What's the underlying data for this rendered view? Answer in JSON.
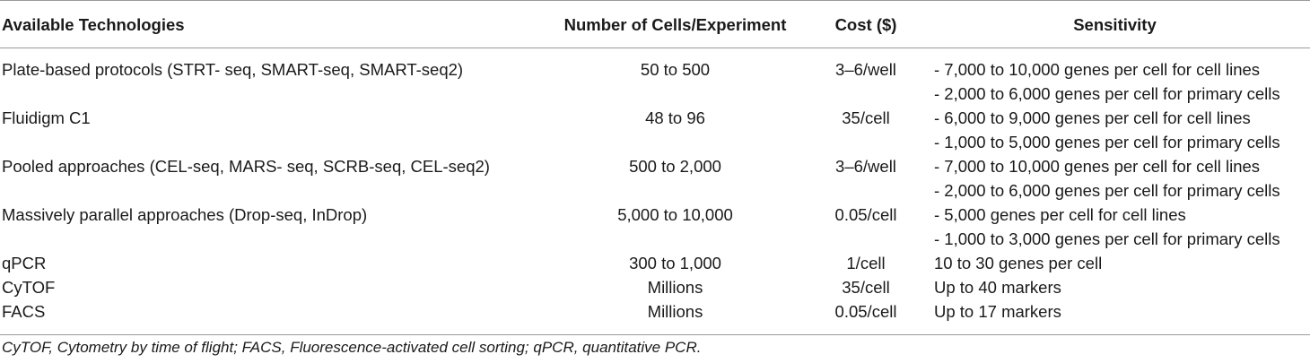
{
  "table": {
    "headers": [
      "Available Technologies",
      "Number of Cells/Experiment",
      "Cost ($)",
      "Sensitivity"
    ],
    "rows": [
      {
        "technology": "Plate-based protocols (STRT- seq, SMART-seq, SMART-seq2)",
        "cells": "50 to 500",
        "cost": "3–6/well",
        "sensitivity": [
          "- 7,000 to 10,000 genes per cell for cell lines",
          "- 2,000 to 6,000 genes per cell for primary cells"
        ]
      },
      {
        "technology": "Fluidigm C1",
        "cells": "48 to 96",
        "cost": "35/cell",
        "sensitivity": [
          "- 6,000 to 9,000 genes per cell for cell lines",
          "- 1,000 to 5,000 genes per cell for primary cells"
        ]
      },
      {
        "technology": "Pooled approaches (CEL-seq, MARS- seq, SCRB-seq, CEL-seq2)",
        "cells": "500 to 2,000",
        "cost": "3–6/well",
        "sensitivity": [
          "- 7,000 to 10,000 genes per cell for cell lines",
          "- 2,000 to 6,000 genes per cell for primary cells"
        ]
      },
      {
        "technology": "Massively parallel approaches (Drop-seq, InDrop)",
        "cells": "5,000 to 10,000",
        "cost": "0.05/cell",
        "sensitivity": [
          "- 5,000 genes per cell for cell lines",
          "- 1,000 to 3,000 genes per cell for primary cells"
        ]
      },
      {
        "technology": "qPCR",
        "cells": "300 to 1,000",
        "cost": "1/cell",
        "sensitivity": [
          "10 to 30 genes per cell"
        ]
      },
      {
        "technology": "CyTOF",
        "cells": "Millions",
        "cost": "35/cell",
        "sensitivity": [
          "Up to 40 markers"
        ]
      },
      {
        "technology": "FACS",
        "cells": "Millions",
        "cost": "0.05/cell",
        "sensitivity": [
          "Up to 17 markers"
        ]
      }
    ]
  },
  "footnote": "CyTOF, Cytometry by time of flight; FACS, Fluorescence-activated cell sorting; qPCR, quantitative PCR."
}
